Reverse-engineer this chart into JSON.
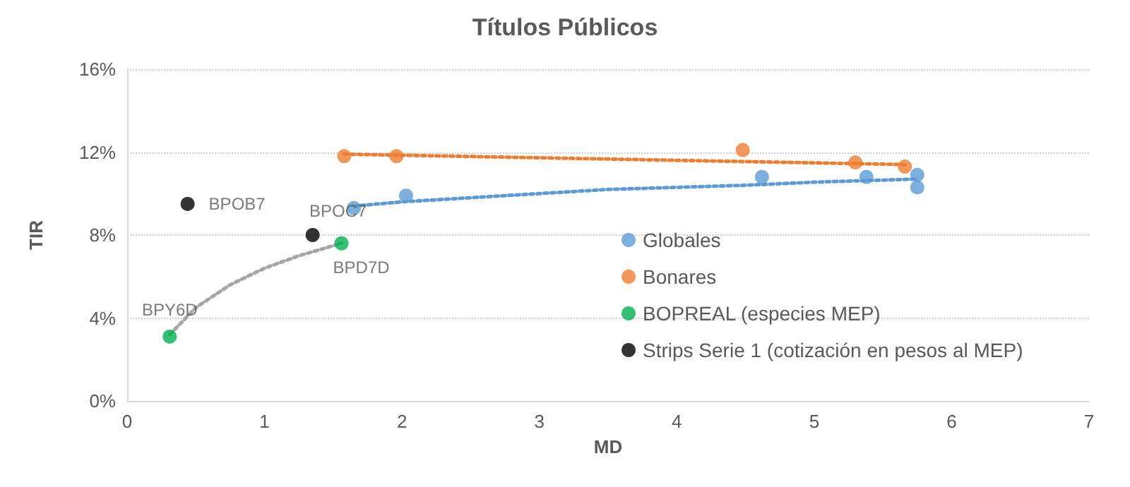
{
  "chart_data": {
    "type": "scatter",
    "title": "Títulos Públicos",
    "xlabel": "MD",
    "ylabel": "TIR",
    "xlim": [
      0,
      7
    ],
    "xticks": [
      0,
      1,
      2,
      3,
      4,
      5,
      6,
      7
    ],
    "ylim": [
      0,
      16
    ],
    "yticks": [
      {
        "value": 0,
        "label": "0%"
      },
      {
        "value": 4,
        "label": "4%"
      },
      {
        "value": 8,
        "label": "8%"
      },
      {
        "value": 12,
        "label": "12%"
      },
      {
        "value": 16,
        "label": "16%"
      }
    ],
    "grid": "y",
    "legend": "right",
    "marker": "circle",
    "series": [
      {
        "name": "Globales",
        "color": "#5b9bd5",
        "x": [
          1.65,
          2.03,
          4.62,
          5.38,
          5.75,
          5.75
        ],
        "values": [
          9.3,
          9.9,
          10.8,
          10.8,
          10.9,
          10.3
        ]
      },
      {
        "name": "Bonares",
        "color": "#ed7d31",
        "x": [
          1.58,
          1.96,
          4.48,
          5.3,
          5.66
        ],
        "values": [
          11.8,
          11.8,
          12.1,
          11.5,
          11.3
        ]
      },
      {
        "name": "BOPREAL (especies MEP)",
        "color": "#00b050",
        "x": [
          0.31,
          1.56
        ],
        "values": [
          3.1,
          7.6
        ]
      },
      {
        "name": "Strips Serie 1 (cotización en pesos al MEP)",
        "color": "#000000",
        "x": [
          0.44,
          1.35
        ],
        "values": [
          9.5,
          8.0
        ]
      },
      {
        "type": "line",
        "color": "#5b9bd5",
        "line_style": "dotted",
        "marker": "none",
        "x": [
          1.65,
          2,
          2.5,
          3,
          3.5,
          4,
          4.5,
          5,
          5.5,
          5.75
        ],
        "values": [
          9.4,
          9.6,
          9.8,
          10.0,
          10.2,
          10.3,
          10.4,
          10.55,
          10.65,
          10.7
        ]
      },
      {
        "type": "line",
        "color": "#ed7d31",
        "line_style": "dotted",
        "marker": "none",
        "x": [
          1.58,
          5.66
        ],
        "values": [
          11.9,
          11.4
        ]
      },
      {
        "type": "line",
        "color": "#a5a5a5",
        "line_style": "dotted",
        "marker": "none",
        "x": [
          0.31,
          0.5,
          0.75,
          1,
          1.25,
          1.56
        ],
        "values": [
          3.2,
          4.5,
          5.6,
          6.4,
          7.0,
          7.6
        ]
      }
    ],
    "annotations": [
      {
        "text": "BPOB7",
        "x": 0.44,
        "y": 9.5
      },
      {
        "text": "BPOC7",
        "x": 1.35,
        "y": 8.0
      },
      {
        "text": "BPD7D",
        "x": 1.56,
        "y": 7.6
      },
      {
        "text": "BPY6D",
        "x": 0.31,
        "y": 3.1
      }
    ]
  }
}
